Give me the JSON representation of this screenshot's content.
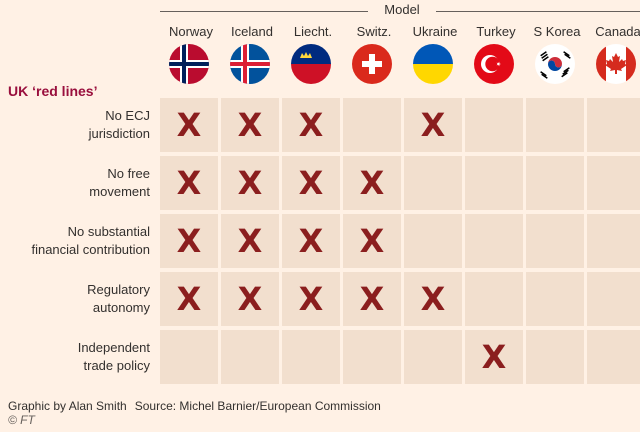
{
  "chart_data": {
    "type": "table",
    "title": "UK ‘red lines’",
    "column_group_label": "Model",
    "columns": [
      "Norway",
      "Iceland",
      "Liecht.",
      "Switz.",
      "Ukraine",
      "Turkey",
      "S Korea",
      "Canada"
    ],
    "rows": [
      {
        "label": [
          "No ECJ",
          "jurisdiction"
        ],
        "values": [
          true,
          true,
          true,
          false,
          true,
          false,
          false,
          false
        ]
      },
      {
        "label": [
          "No free",
          "movement"
        ],
        "values": [
          true,
          true,
          true,
          true,
          false,
          false,
          false,
          false
        ]
      },
      {
        "label": [
          "No substantial",
          "financial contribution"
        ],
        "values": [
          true,
          true,
          true,
          true,
          false,
          false,
          false,
          false
        ]
      },
      {
        "label": [
          "Regulatory",
          "autonomy"
        ],
        "values": [
          true,
          true,
          true,
          true,
          true,
          false,
          false,
          false
        ]
      },
      {
        "label": [
          "Independent",
          "trade policy"
        ],
        "values": [
          false,
          false,
          false,
          false,
          false,
          true,
          false,
          false
        ]
      }
    ],
    "mark_symbol": "X",
    "mark_color": "#8b1e1e",
    "cell_color": "#f2dfce",
    "background_color": "#fff1e5",
    "title_color": "#990f3d",
    "flag_icons": [
      "norway-flag-icon",
      "iceland-flag-icon",
      "liechtenstein-flag-icon",
      "switzerland-flag-icon",
      "ukraine-flag-icon",
      "turkey-flag-icon",
      "south-korea-flag-icon",
      "canada-flag-icon"
    ]
  },
  "footer": {
    "credit": "Graphic by Alan Smith",
    "source": "Source: Michel Barnier/European Commission",
    "publisher": "© FT"
  }
}
